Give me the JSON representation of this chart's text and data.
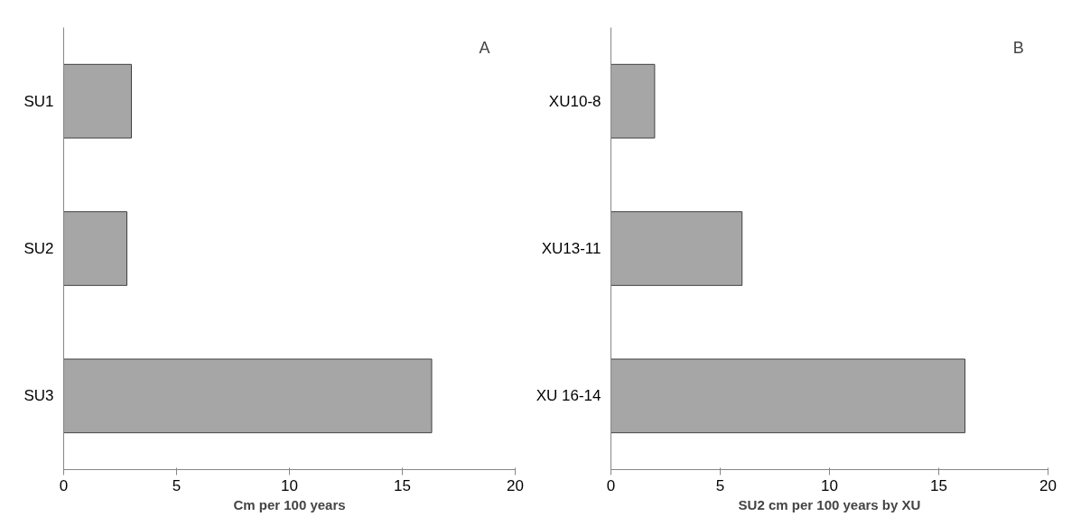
{
  "chart_data": [
    {
      "type": "bar",
      "orientation": "horizontal",
      "categories": [
        "SU1",
        "SU2",
        "SU3"
      ],
      "values": [
        3,
        2.8,
        16.3
      ],
      "color": "#a6a6a6",
      "xlim": [
        0,
        20
      ],
      "xticks": [
        0,
        5,
        10,
        15,
        20
      ],
      "xlabel": "Cm per 100 years",
      "annotations": [
        "A"
      ],
      "grid": false
    },
    {
      "type": "bar",
      "orientation": "horizontal",
      "categories": [
        "XU10-8",
        "XU13-11",
        "XU 16-14"
      ],
      "values": [
        2,
        6,
        16.2
      ],
      "color": "#a6a6a6",
      "xlim": [
        0,
        20
      ],
      "xticks": [
        0,
        5,
        10,
        15,
        20
      ],
      "xlabel": "SU2 cm per 100 years by XU",
      "annotations": [
        "B"
      ],
      "grid": false
    }
  ]
}
